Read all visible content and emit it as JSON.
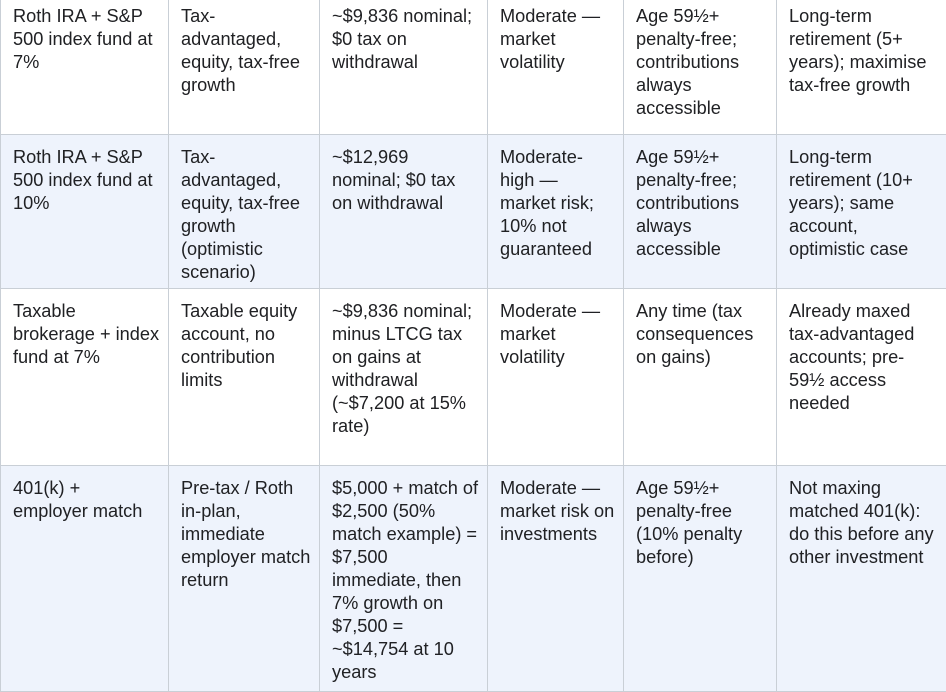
{
  "table": {
    "rows": [
      {
        "cells": [
          "Roth IRA + S&P 500 index fund at 7%",
          "Tax-advantaged, equity, tax-free growth",
          "~$9,836 nominal; $0 tax on withdrawal",
          "Moderate — market volatility",
          "Age 59½+ penalty-free; contributions always accessible",
          "Long-term retirement (5+ years); maximise tax-free growth"
        ]
      },
      {
        "cells": [
          "Roth IRA + S&P 500 index fund at 10%",
          "Tax-advantaged, equity, tax-free growth (optimistic scenario)",
          "~$12,969 nominal; $0 tax on withdrawal",
          "Moderate-high — market risk; 10% not guaranteed",
          "Age 59½+ penalty-free; contributions always accessible",
          "Long-term retirement (10+ years); same account, optimistic case"
        ]
      },
      {
        "cells": [
          "Taxable brokerage + index fund at 7%",
          "Taxable equity account, no contribution limits",
          "~$9,836 nominal; minus LTCG tax on gains at withdrawal (~$7,200 at 15% rate)",
          "Moderate — market volatility",
          "Any time (tax consequences on gains)",
          "Already maxed tax-advantaged accounts; pre-59½ access needed"
        ]
      },
      {
        "cells": [
          "401(k) + employer match",
          "Pre-tax / Roth in-plan, immediate employer match return",
          "$5,000 + match of $2,500 (50% match example) = $7,500 immediate, then 7% growth on $7,500 = ~$14,754 at 10 years",
          "Moderate — market risk on investments",
          "Age 59½+ penalty-free (10% penalty before)",
          "Not maxing matched 401(k): do this before any other investment"
        ]
      }
    ]
  }
}
